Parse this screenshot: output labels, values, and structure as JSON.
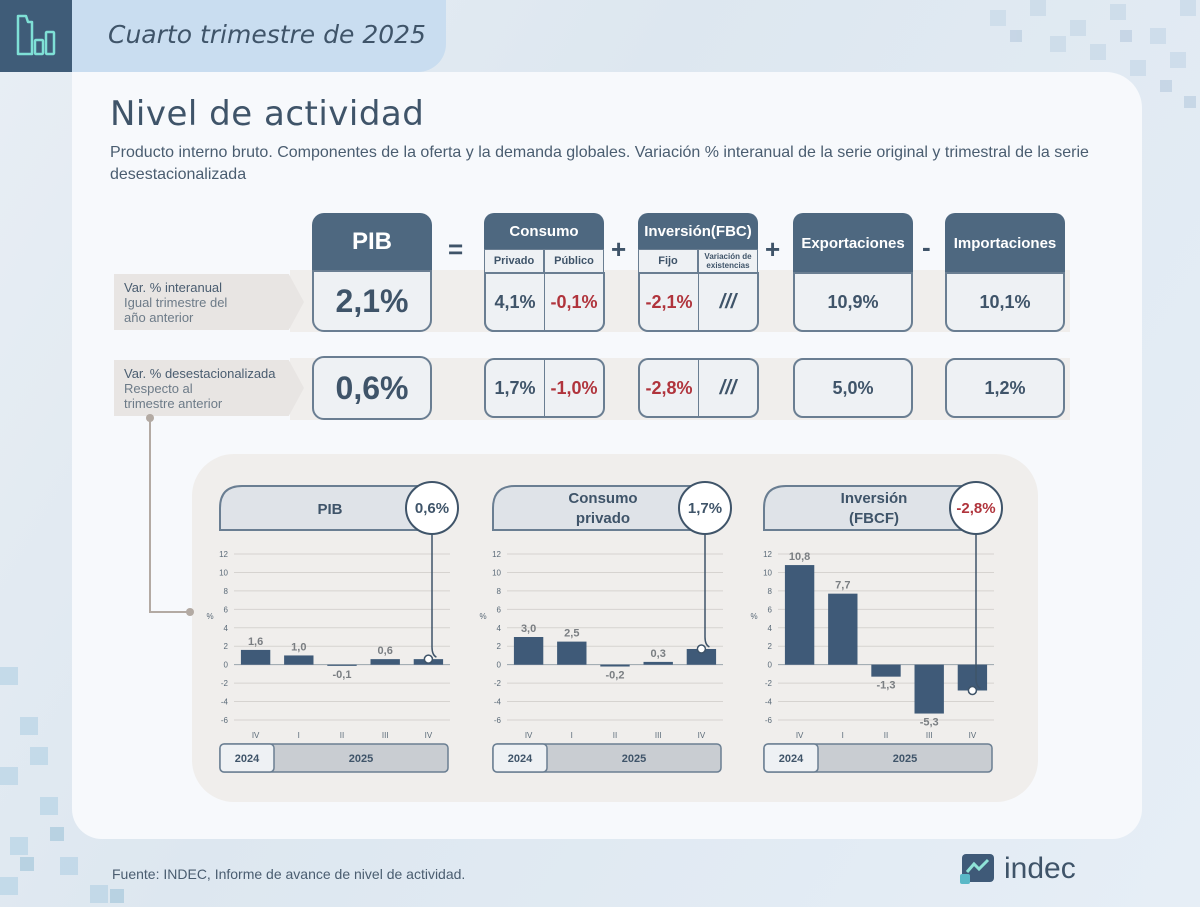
{
  "header": {
    "title": "Cuarto trimestre de 2025"
  },
  "page": {
    "title": "Nivel de actividad",
    "subtitle": "Producto interno bruto. Componentes de la oferta y la demanda globales. Variación % interanual de la serie original y trimestral de la serie desestacionalizada"
  },
  "equation": {
    "pib_label": "PIB",
    "eq": "=",
    "plus1": "+",
    "plus2": "+",
    "minus": "-",
    "consumo": {
      "label": "Consumo",
      "privado": "Privado",
      "publico": "Público"
    },
    "inversion": {
      "label": "Inversión(FBC)",
      "fijo": "Fijo",
      "variacion": "Variación de existencias"
    },
    "exportaciones": "Exportaciones",
    "importaciones": "Importaciones"
  },
  "row1": {
    "label_title": "Var. % interanual",
    "label_desc": "Igual trimestre del año anterior",
    "pib": "2,1%",
    "consumo_privado": "4,1%",
    "consumo_publico": "-0,1%",
    "inversion_fijo": "-2,1%",
    "inversion_var": "///",
    "exportaciones": "10,9%",
    "importaciones": "10,1%"
  },
  "row2": {
    "label_title": "Var. % desestacionalizada",
    "label_desc": "Respecto al trimestre anterior",
    "pib": "0,6%",
    "consumo_privado": "1,7%",
    "consumo_publico": "-1,0%",
    "inversion_fijo": "-2,8%",
    "inversion_var": "///",
    "exportaciones": "5,0%",
    "importaciones": "1,2%"
  },
  "colors": {
    "navy": "#3f5a78",
    "header_blue": "#4e6880",
    "negative_red": "#b0343c",
    "panel_beige": "#f0eeec"
  },
  "chart_data": [
    {
      "type": "bar",
      "title": "PIB",
      "badge": "0,6%",
      "ylabel": "%",
      "categories": [
        "IV",
        "I",
        "II",
        "III",
        "IV"
      ],
      "values": [
        1.6,
        1.0,
        -0.1,
        0.6,
        0.6
      ],
      "value_labels": [
        "1,6",
        "1,0",
        "-0,1",
        "0,6",
        ""
      ],
      "ylim": [
        -6,
        12
      ],
      "yticks": [
        12,
        10,
        8,
        6,
        4,
        2,
        0,
        -2,
        -4,
        -6
      ],
      "years": [
        "2024",
        "2025"
      ],
      "grid": true
    },
    {
      "type": "bar",
      "title": "Consumo privado",
      "badge": "1,7%",
      "ylabel": "%",
      "categories": [
        "IV",
        "I",
        "II",
        "III",
        "IV"
      ],
      "values": [
        3.0,
        2.5,
        -0.2,
        0.3,
        1.7
      ],
      "value_labels": [
        "3,0",
        "2,5",
        "-0,2",
        "0,3",
        ""
      ],
      "ylim": [
        -6,
        12
      ],
      "yticks": [
        12,
        10,
        8,
        6,
        4,
        2,
        0,
        -2,
        -4,
        -6
      ],
      "years": [
        "2024",
        "2025"
      ],
      "grid": true
    },
    {
      "type": "bar",
      "title": "Inversión (FBCF)",
      "badge": "-2,8%",
      "ylabel": "%",
      "categories": [
        "IV",
        "I",
        "II",
        "III",
        "IV"
      ],
      "values": [
        10.8,
        7.7,
        -1.3,
        -5.3,
        -2.8
      ],
      "value_labels": [
        "10,8",
        "7,7",
        "-1,3",
        "-5,3",
        ""
      ],
      "ylim": [
        -6,
        12
      ],
      "yticks": [
        12,
        10,
        8,
        6,
        4,
        2,
        0,
        -2,
        -4,
        -6
      ],
      "years": [
        "2024",
        "2025"
      ],
      "grid": true
    }
  ],
  "footer": {
    "source": "Fuente: INDEC, Informe de avance de nivel de actividad.",
    "brand": "indec"
  }
}
